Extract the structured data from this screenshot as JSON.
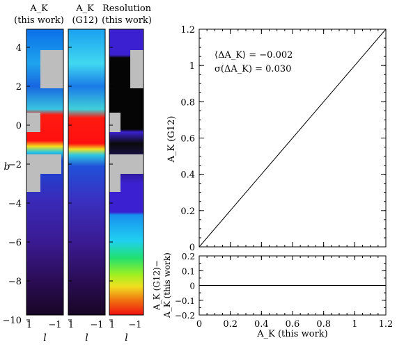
{
  "panels": {
    "left_titles": [
      {
        "line1": "A_K",
        "line2": "(this work)"
      },
      {
        "line1": "A_K",
        "line2": "(G12)"
      },
      {
        "line1": "Resolution",
        "line2": "(this work)"
      }
    ],
    "b_label": "b",
    "l_label": "l",
    "b_ticks": [
      "4",
      "2",
      "0",
      "−2",
      "−4",
      "−6",
      "−8",
      "−10"
    ],
    "l_ticks": [
      "1",
      "−1"
    ]
  },
  "annotation": {
    "mean": "⟨ΔA_K⟩ = −0.002",
    "sigma": "σ(ΔA_K) = 0.030"
  },
  "chart_data": [
    {
      "type": "line",
      "title": "",
      "xlabel": "A_K (this work)",
      "ylabel": "A_K (G12)",
      "xlim": [
        0,
        1.2
      ],
      "ylim": [
        0,
        1.2
      ],
      "x_ticks": [
        "0",
        "0.2",
        "0.4",
        "0.6",
        "0.8",
        "1",
        "1.2"
      ],
      "y_ticks": [
        "0",
        "0.2",
        "0.4",
        "0.6",
        "0.8",
        "1",
        "1.2"
      ],
      "series": [
        {
          "x": [
            0,
            1.2
          ],
          "y": [
            0,
            1.2
          ]
        }
      ],
      "grid": false
    },
    {
      "type": "line",
      "title": "",
      "xlabel": "A_K (this work)",
      "ylabel": "A_K (G12)− A_K (this work)",
      "ylabel_line1": "A_K (G12)−",
      "ylabel_line2": "A_K (this work)",
      "xlim": [
        0,
        1.2
      ],
      "ylim": [
        -0.2,
        0.2
      ],
      "y_ticks": [
        "0.2",
        "0.1",
        "0",
        "−0.1",
        "−0.2"
      ],
      "series": [
        {
          "x": [
            0,
            1.2
          ],
          "y": [
            0,
            0
          ]
        }
      ],
      "grid": false
    }
  ]
}
